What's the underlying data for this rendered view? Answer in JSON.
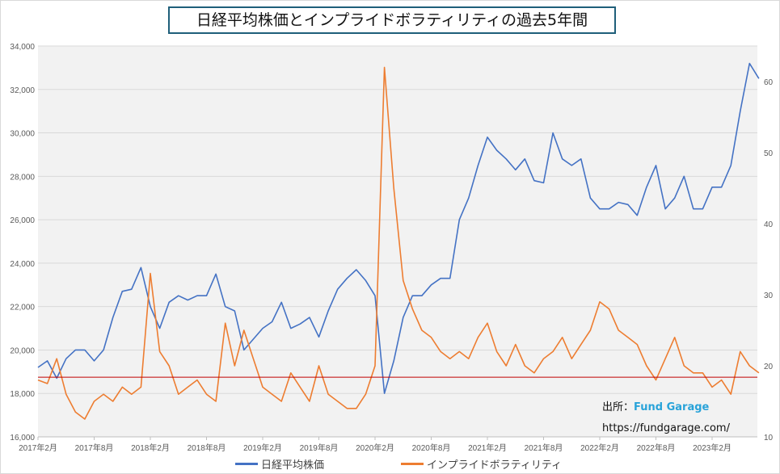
{
  "chart_data": {
    "type": "line",
    "title": "日経平均株価とインプライドボラティリティの過去5年間",
    "x_start": "2017-02",
    "x_step": "1 month",
    "x_tick_labels": [
      "2017年2月",
      "2017年8月",
      "2018年2月",
      "2018年8月",
      "2019年2月",
      "2019年8月",
      "2020年2月",
      "2020年8月",
      "2021年2月",
      "2021年8月",
      "2022年2月",
      "2022年8月",
      "2023年2月"
    ],
    "left_axis": {
      "min": 16000,
      "max": 34000,
      "step": 2000,
      "tick_labels": [
        "16,000",
        "18,000",
        "20,000",
        "22,000",
        "24,000",
        "26,000",
        "28,000",
        "30,000",
        "32,000",
        "34,000"
      ]
    },
    "right_axis": {
      "min": 10,
      "max": 65,
      "step": 10,
      "tick_labels": [
        "10",
        "20",
        "30",
        "40",
        "50",
        "60"
      ]
    },
    "grid": true,
    "legend_position": "bottom",
    "reference_line": {
      "axis": "right",
      "value": 18.4,
      "color": "#c00000"
    },
    "series": [
      {
        "name": "日経平均株価",
        "axis": "left",
        "color": "#4472c4",
        "values": [
          19200,
          19500,
          18700,
          19600,
          20000,
          20000,
          19500,
          20000,
          21500,
          22700,
          22800,
          23800,
          22000,
          21000,
          22200,
          22500,
          22300,
          22500,
          22500,
          23500,
          22000,
          21800,
          20000,
          20500,
          21000,
          21300,
          22200,
          21000,
          21200,
          21500,
          20600,
          21800,
          22800,
          23300,
          23700,
          23200,
          22500,
          18000,
          19500,
          21500,
          22500,
          22500,
          23000,
          23300,
          23300,
          26000,
          27000,
          28500,
          29800,
          29200,
          28800,
          28300,
          28800,
          27800,
          27700,
          30000,
          28800,
          28500,
          28800,
          27000,
          26500,
          26500,
          26800,
          26700,
          26200,
          27500,
          28500,
          26500,
          27000,
          28000,
          26500,
          26500,
          27500,
          27500,
          28500,
          31000,
          33200,
          32500
        ]
      },
      {
        "name": "インプライドボラティリティ",
        "axis": "right",
        "color": "#ed7d31",
        "values": [
          18,
          17.5,
          21,
          16,
          13.5,
          12.5,
          15,
          16,
          15,
          17,
          16,
          17,
          33,
          22,
          20,
          16,
          17,
          18,
          16,
          15,
          26,
          20,
          25,
          21,
          17,
          16,
          15,
          19,
          17,
          15,
          20,
          16,
          15,
          14,
          14,
          16,
          20,
          62,
          45,
          32,
          28,
          25,
          24,
          22,
          21,
          22,
          21,
          24,
          26,
          22,
          20,
          23,
          20,
          19,
          21,
          22,
          24,
          21,
          23,
          25,
          29,
          28,
          25,
          24,
          23,
          20,
          18,
          21,
          24,
          20,
          19,
          19,
          17,
          18,
          16,
          22,
          20,
          19
        ]
      }
    ]
  },
  "source": {
    "label": "出所：",
    "brand": "Fund Garage",
    "url": "https://fundgarage.com/"
  }
}
